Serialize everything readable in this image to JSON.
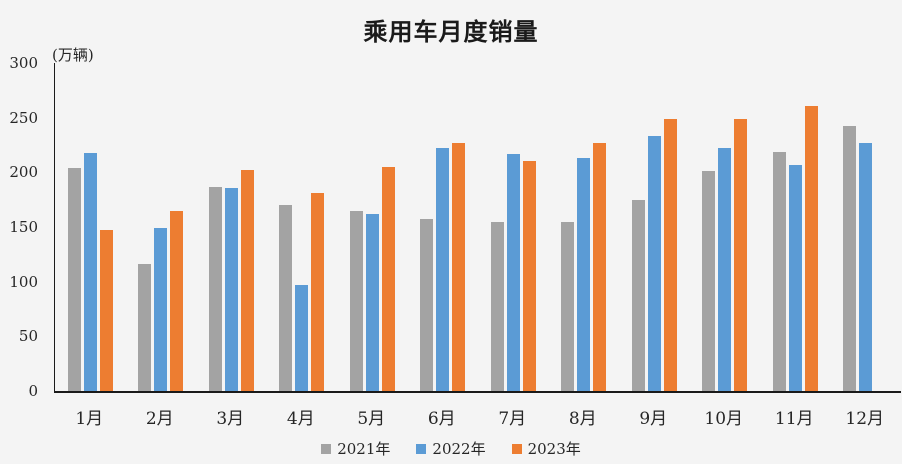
{
  "title": "乘用车月度销量",
  "unit_label": "(万辆)",
  "colors": {
    "background": "#f4f4f4",
    "axis": "#1a1a1a",
    "text": "#262626",
    "series_2021": "#a3a3a3",
    "series_2022": "#5b9bd5",
    "series_2023": "#ed7d31"
  },
  "chart_data": {
    "type": "bar",
    "title": "乘用车月度销量",
    "ylabel": "(万辆)",
    "xlabel": "",
    "categories": [
      "1月",
      "2月",
      "3月",
      "4月",
      "5月",
      "6月",
      "7月",
      "8月",
      "9月",
      "10月",
      "11月",
      "12月"
    ],
    "series": [
      {
        "name": "2021年",
        "color": "#a3a3a3",
        "values": [
          204,
          116,
          187,
          170,
          165,
          157,
          155,
          155,
          175,
          201,
          219,
          242
        ]
      },
      {
        "name": "2022年",
        "color": "#5b9bd5",
        "values": [
          218,
          149,
          186,
          97,
          162,
          222,
          217,
          213,
          233,
          222,
          207,
          227
        ]
      },
      {
        "name": "2023年",
        "color": "#ed7d31",
        "values": [
          147,
          165,
          202,
          181,
          205,
          227,
          210,
          227,
          249,
          249,
          261,
          null
        ]
      }
    ],
    "ylim": [
      0,
      300
    ],
    "yticks": [
      0,
      50,
      100,
      150,
      200,
      250,
      300
    ],
    "grid": false,
    "legend_position": "bottom"
  }
}
